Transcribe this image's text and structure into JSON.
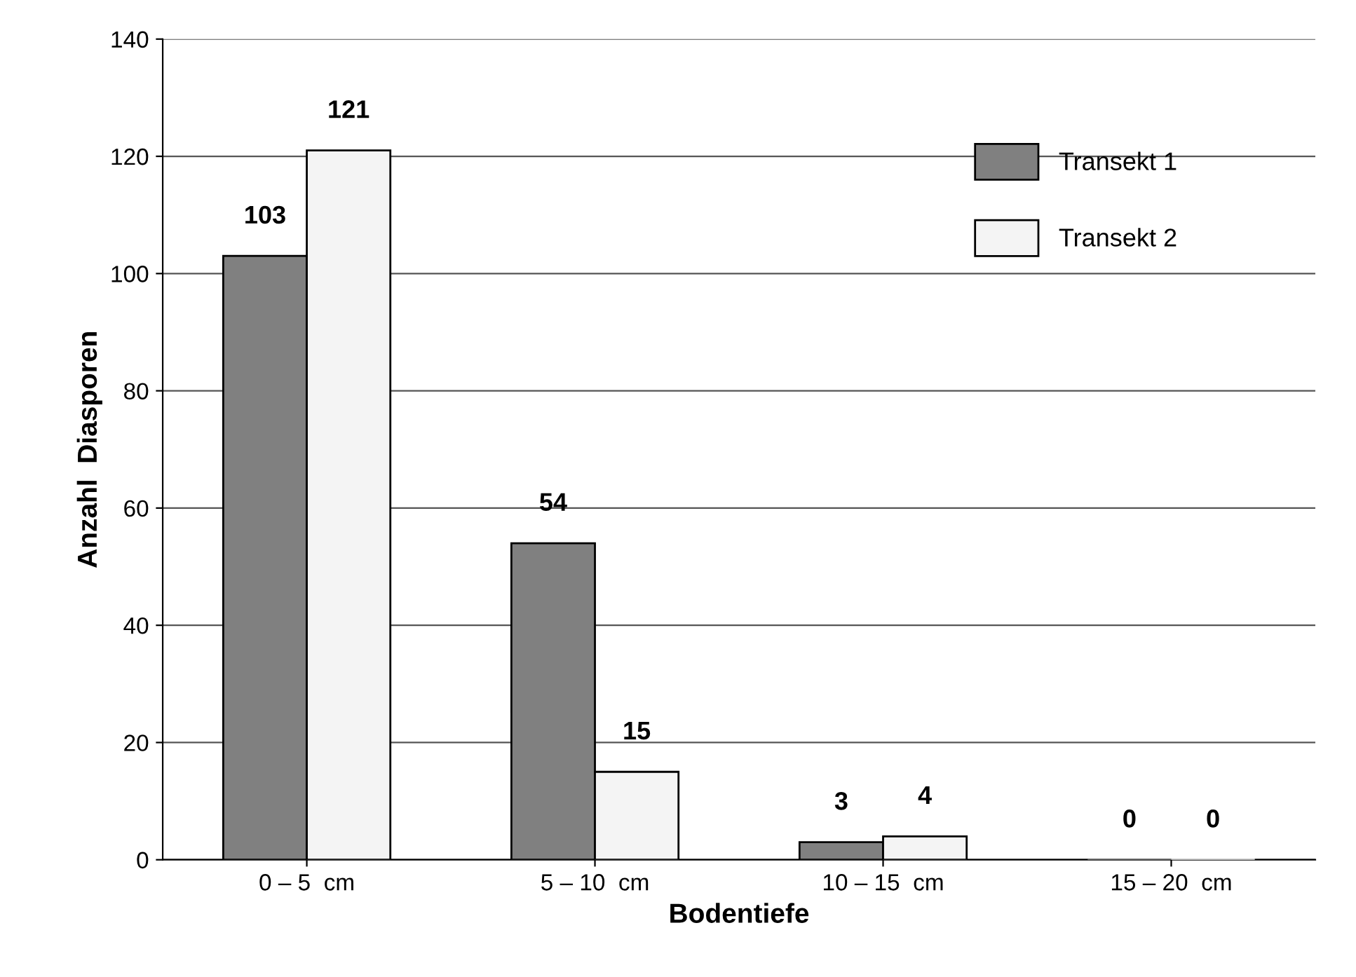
{
  "chart_data": {
    "type": "bar",
    "xlabel": "Bodentiefe",
    "ylabel": "Anzahl  Diasporen",
    "categories": [
      "0 – 5  cm",
      "5 – 10  cm",
      "10 – 15  cm",
      "15 – 20  cm"
    ],
    "series": [
      {
        "name": "Transekt 1",
        "color": "#808080",
        "values": [
          103,
          54,
          3,
          0
        ]
      },
      {
        "name": "Transekt 2",
        "color": "#f4f4f4",
        "values": [
          121,
          15,
          4,
          0
        ]
      }
    ],
    "ylim": [
      0,
      140
    ],
    "yticks": [
      0,
      20,
      40,
      60,
      80,
      100,
      120,
      140
    ],
    "grid": "y",
    "legend": "top right",
    "data_labels": true
  }
}
